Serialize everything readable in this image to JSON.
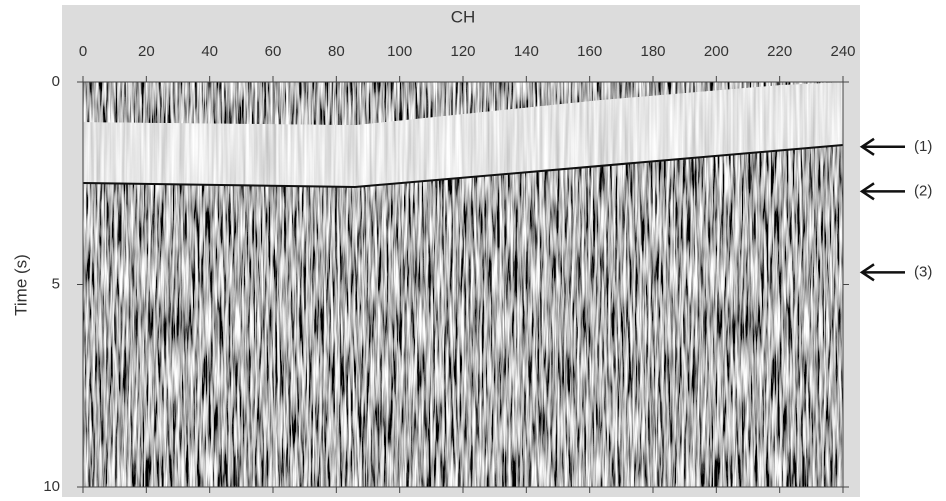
{
  "chart_data": {
    "type": "seismic",
    "xlabel": "CH",
    "ylabel": "Time (s)",
    "xlim": [
      0,
      240
    ],
    "xticks": [
      0,
      20,
      40,
      60,
      80,
      100,
      120,
      140,
      160,
      180,
      200,
      220,
      240
    ],
    "ylim": [
      0,
      10
    ],
    "yticks": [
      0,
      5,
      10
    ],
    "y_inverted": true,
    "annotations": [
      {
        "text": "(1)",
        "y": 1.6
      },
      {
        "text": "(2)",
        "y": 2.7
      },
      {
        "text": "(3)",
        "y": 4.7
      }
    ]
  }
}
